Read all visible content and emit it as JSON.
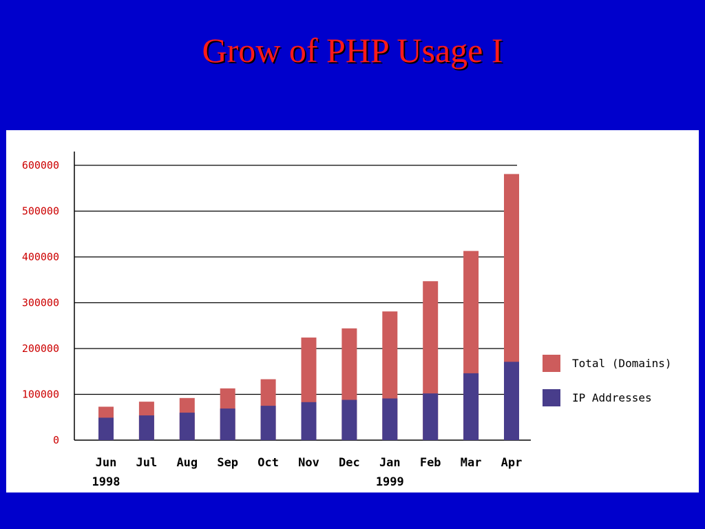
{
  "slide": {
    "title": "Grow of PHP Usage I",
    "title_color": "#ff1a1a",
    "background_color": "#0000cc"
  },
  "chart_data": {
    "type": "bar",
    "stacked": false,
    "overlay": true,
    "categories": [
      "Jun",
      "Jul",
      "Aug",
      "Sep",
      "Oct",
      "Nov",
      "Dec",
      "Jan",
      "Feb",
      "Mar",
      "Apr"
    ],
    "year_labels": [
      {
        "category": "Jun",
        "label": "1998"
      },
      {
        "category": "Jan",
        "label": "1999"
      }
    ],
    "series": [
      {
        "name": "Total (Domains)",
        "color": "#cd5c5c",
        "values": [
          73000,
          84000,
          92000,
          113000,
          133000,
          224000,
          244000,
          281000,
          347000,
          413000,
          581000
        ]
      },
      {
        "name": "IP Addresses",
        "color": "#483d8b",
        "values": [
          49000,
          54000,
          60000,
          69000,
          75000,
          83000,
          88000,
          91000,
          102000,
          146000,
          171000
        ]
      }
    ],
    "yticks": [
      "600000",
      "500000",
      "400000",
      "300000",
      "200000",
      "100000",
      "0"
    ],
    "ytick_color": "#cc0000",
    "ylim": [
      0,
      600000
    ],
    "grid": true,
    "legend_position": "right"
  }
}
